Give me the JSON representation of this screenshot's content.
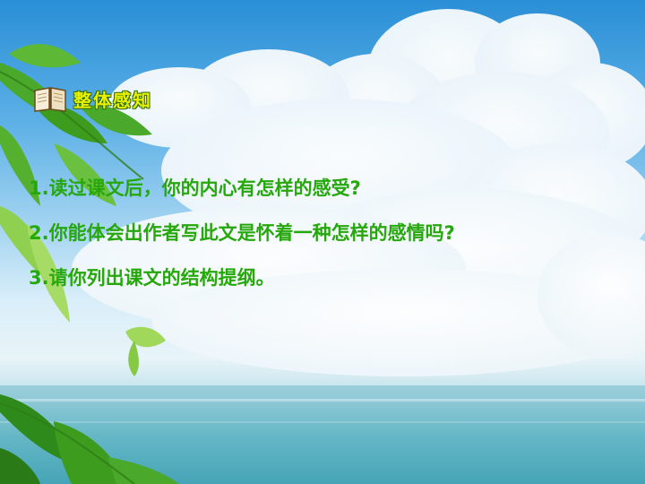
{
  "heading": {
    "icon": "book-icon",
    "title": "整体感知"
  },
  "questions": [
    "1.读过课文后，你的内心有怎样的感受?",
    "2.你能体会出作者写此文是怀着一种怎样的感情吗?",
    "3.请你列出课文的结构提纲。"
  ],
  "colors": {
    "question_text": "#26a80c",
    "heading_text": "#e8f000",
    "sky": "#2a8fd6",
    "sea": "#49a7b7"
  }
}
